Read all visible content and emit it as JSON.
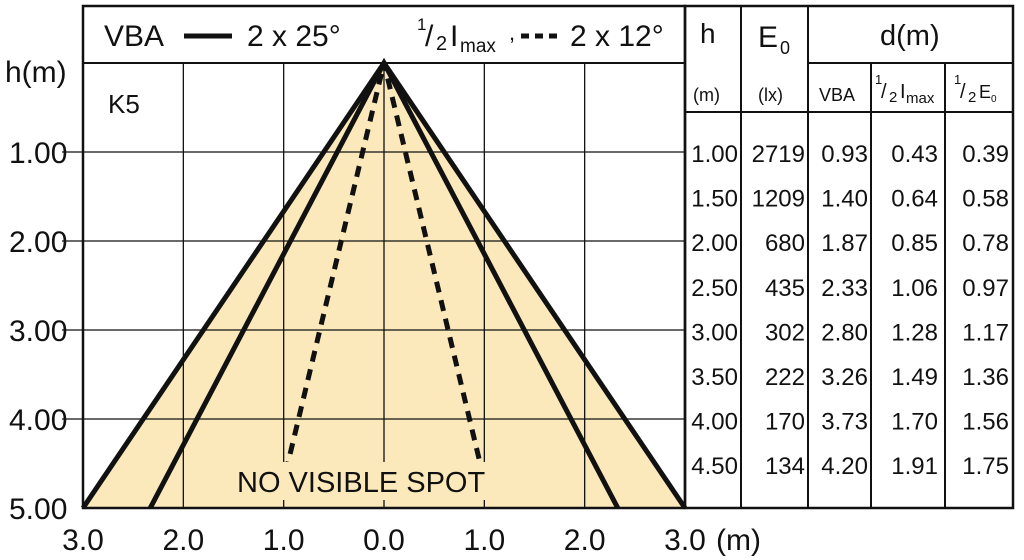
{
  "legend": {
    "vba_label": "VBA",
    "vba_angle": "2 x 25°",
    "half_prefix": "1",
    "half_den": "2",
    "imax_main": "I",
    "imax_sub": "max",
    "imax_angle": "2 x 12°"
  },
  "fixture_label": "K5",
  "no_spot_text": "NO VISIBLE SPOT",
  "x_unit": "(m)",
  "y_unit": "h(m)",
  "table": {
    "h_header": "h",
    "h_unit": "(m)",
    "e_header_main": "E",
    "e_header_sub": "0",
    "e_unit": "(lx)",
    "d_header": "d(m)",
    "sub_vba": "VBA",
    "sub_imax_num": "1",
    "sub_imax_den": "2",
    "sub_imax_main": "I",
    "sub_imax_sub": "max",
    "sub_e_num": "1",
    "sub_e_den": "2",
    "sub_e_main": "E",
    "sub_e_sub": "0",
    "rows": [
      {
        "h": "1.00",
        "e": "2719",
        "vba": "0.93",
        "imax": "0.43",
        "e0": "0.39"
      },
      {
        "h": "1.50",
        "e": "1209",
        "vba": "1.40",
        "imax": "0.64",
        "e0": "0.58"
      },
      {
        "h": "2.00",
        "e": "680",
        "vba": "1.87",
        "imax": "0.85",
        "e0": "0.78"
      },
      {
        "h": "2.50",
        "e": "435",
        "vba": "2.33",
        "imax": "1.06",
        "e0": "0.97"
      },
      {
        "h": "3.00",
        "e": "302",
        "vba": "2.80",
        "imax": "1.28",
        "e0": "1.17"
      },
      {
        "h": "3.50",
        "e": "222",
        "vba": "3.26",
        "imax": "1.49",
        "e0": "1.36"
      },
      {
        "h": "4.00",
        "e": "170",
        "vba": "3.73",
        "imax": "1.70",
        "e0": "1.56"
      },
      {
        "h": "4.50",
        "e": "134",
        "vba": "4.20",
        "imax": "1.91",
        "e0": "1.75"
      }
    ]
  },
  "colors": {
    "cone_fill": "#fbe8bb",
    "line": "#111111",
    "grid": "#111111"
  },
  "chart_data": {
    "type": "line",
    "title": "",
    "xlabel": "(m)",
    "ylabel": "h(m)",
    "xlim": [
      -3.0,
      3.0
    ],
    "ylim": [
      0,
      5.0
    ],
    "x_tick_labels": [
      "3.0",
      "2.0",
      "1.0",
      "0.0",
      "1.0",
      "2.0",
      "3.0"
    ],
    "x_tick_values": [
      -3,
      -2,
      -1,
      0,
      1,
      2,
      3
    ],
    "y_tick_labels": [
      "1.00",
      "2.00",
      "3.00",
      "4.00",
      "5.00"
    ],
    "y_tick_values": [
      1,
      2,
      3,
      4,
      5
    ],
    "grid": true,
    "series": [
      {
        "name": "VBA",
        "style": "solid",
        "points": [
          [
            -2.33,
            5.0
          ],
          [
            0,
            0
          ],
          [
            2.33,
            5.0
          ]
        ]
      },
      {
        "name": "1/2 Imax",
        "style": "dashed",
        "points": [
          [
            -0.98,
            4.6
          ],
          [
            0,
            0
          ],
          [
            0.98,
            4.6
          ]
        ]
      }
    ],
    "outer_cone": [
      [
        -3.0,
        5.0
      ],
      [
        0,
        0
      ],
      [
        3.0,
        5.0
      ]
    ]
  }
}
